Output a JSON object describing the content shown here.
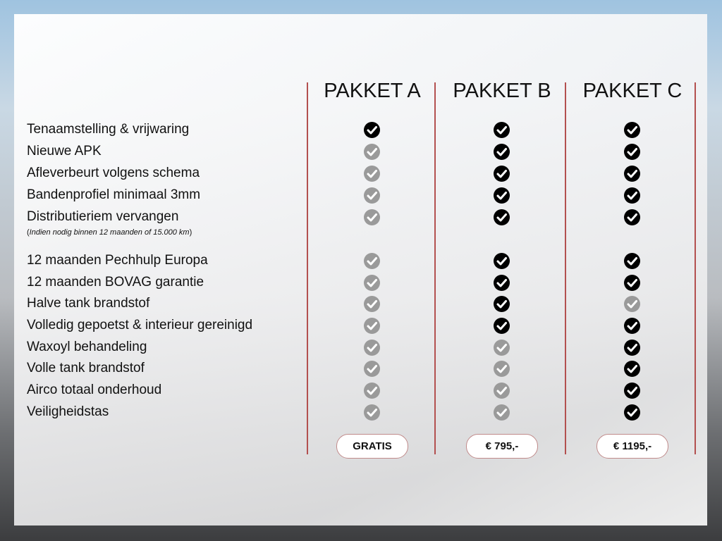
{
  "packages": [
    {
      "name": "PAKKET A",
      "price": "GRATIS"
    },
    {
      "name": "PAKKET B",
      "price": "€ 795,-"
    },
    {
      "name": "PAKKET C",
      "price": "€ 1195,-"
    }
  ],
  "note_prefix": "(",
  "note": "Indien nodig binnen 12 maanden of 15.000 km",
  "note_suffix": ")",
  "features": [
    {
      "label": "Tenaamstelling & vrijwaring",
      "included": [
        true,
        true,
        true
      ]
    },
    {
      "label": "Nieuwe APK",
      "included": [
        false,
        true,
        true
      ]
    },
    {
      "label": "Afleverbeurt volgens schema",
      "included": [
        false,
        true,
        true
      ]
    },
    {
      "label": "Bandenprofiel minimaal 3mm",
      "included": [
        false,
        true,
        true
      ]
    },
    {
      "label": "Distributieriem vervangen",
      "included": [
        false,
        true,
        true
      ]
    },
    {
      "label": "12 maanden Pechhulp Europa",
      "included": [
        false,
        true,
        true
      ]
    },
    {
      "label": "12 maanden BOVAG garantie",
      "included": [
        false,
        true,
        true
      ]
    },
    {
      "label": "Halve tank brandstof",
      "included": [
        false,
        true,
        false
      ]
    },
    {
      "label": "Volledig gepoetst & interieur gereinigd",
      "included": [
        false,
        true,
        true
      ]
    },
    {
      "label": "Waxoyl behandeling",
      "included": [
        false,
        false,
        true
      ]
    },
    {
      "label": "Volle tank brandstof",
      "included": [
        false,
        false,
        true
      ]
    },
    {
      "label": "Airco totaal onderhoud",
      "included": [
        false,
        false,
        true
      ]
    },
    {
      "label": "Veiligheidstas",
      "included": [
        false,
        false,
        true
      ]
    }
  ],
  "colors": {
    "included": "#000000",
    "excluded": "#9a9a9a",
    "divider": "#b3504f"
  },
  "icons": {
    "included": "check-circle-icon",
    "excluded": "check-circle-icon"
  }
}
